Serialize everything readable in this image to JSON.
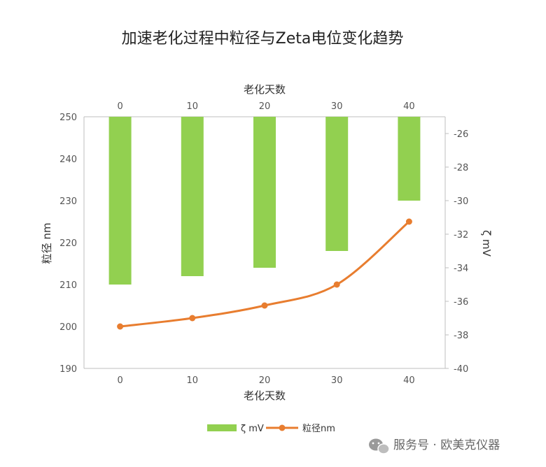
{
  "chart_data": {
    "type": "bar+line",
    "title": "加速老化过程中粒径与Zeta电位变化趋势",
    "x": [
      0,
      10,
      20,
      30,
      40
    ],
    "xlabel_top": "老化天数",
    "xlabel_bottom": "老化天数",
    "ylabel_left": "粒径 nm",
    "ylabel_right": "ζ mV",
    "ylim_left": [
      190,
      250
    ],
    "yticks_left": [
      190,
      200,
      210,
      220,
      230,
      240,
      250
    ],
    "ylim_right": [
      -40,
      -25
    ],
    "yticks_right": [
      -26,
      -28,
      -30,
      -32,
      -34,
      -36,
      -38,
      -40
    ],
    "series": [
      {
        "name": "ζ mV",
        "type": "bar",
        "axis": "right",
        "values": [
          -35,
          -34.5,
          -34,
          -33,
          -30
        ]
      },
      {
        "name": "粒径nm",
        "type": "line",
        "axis": "left",
        "values": [
          200,
          202,
          205,
          210,
          225
        ]
      }
    ],
    "legend_position": "bottom",
    "grid": false
  },
  "colors": {
    "bar": "#92d050",
    "line": "#e87d2f",
    "axis": "#bfbfbf"
  },
  "watermark": {
    "icon": "wechat-icon",
    "text": "服务号 · 欧美克仪器"
  }
}
